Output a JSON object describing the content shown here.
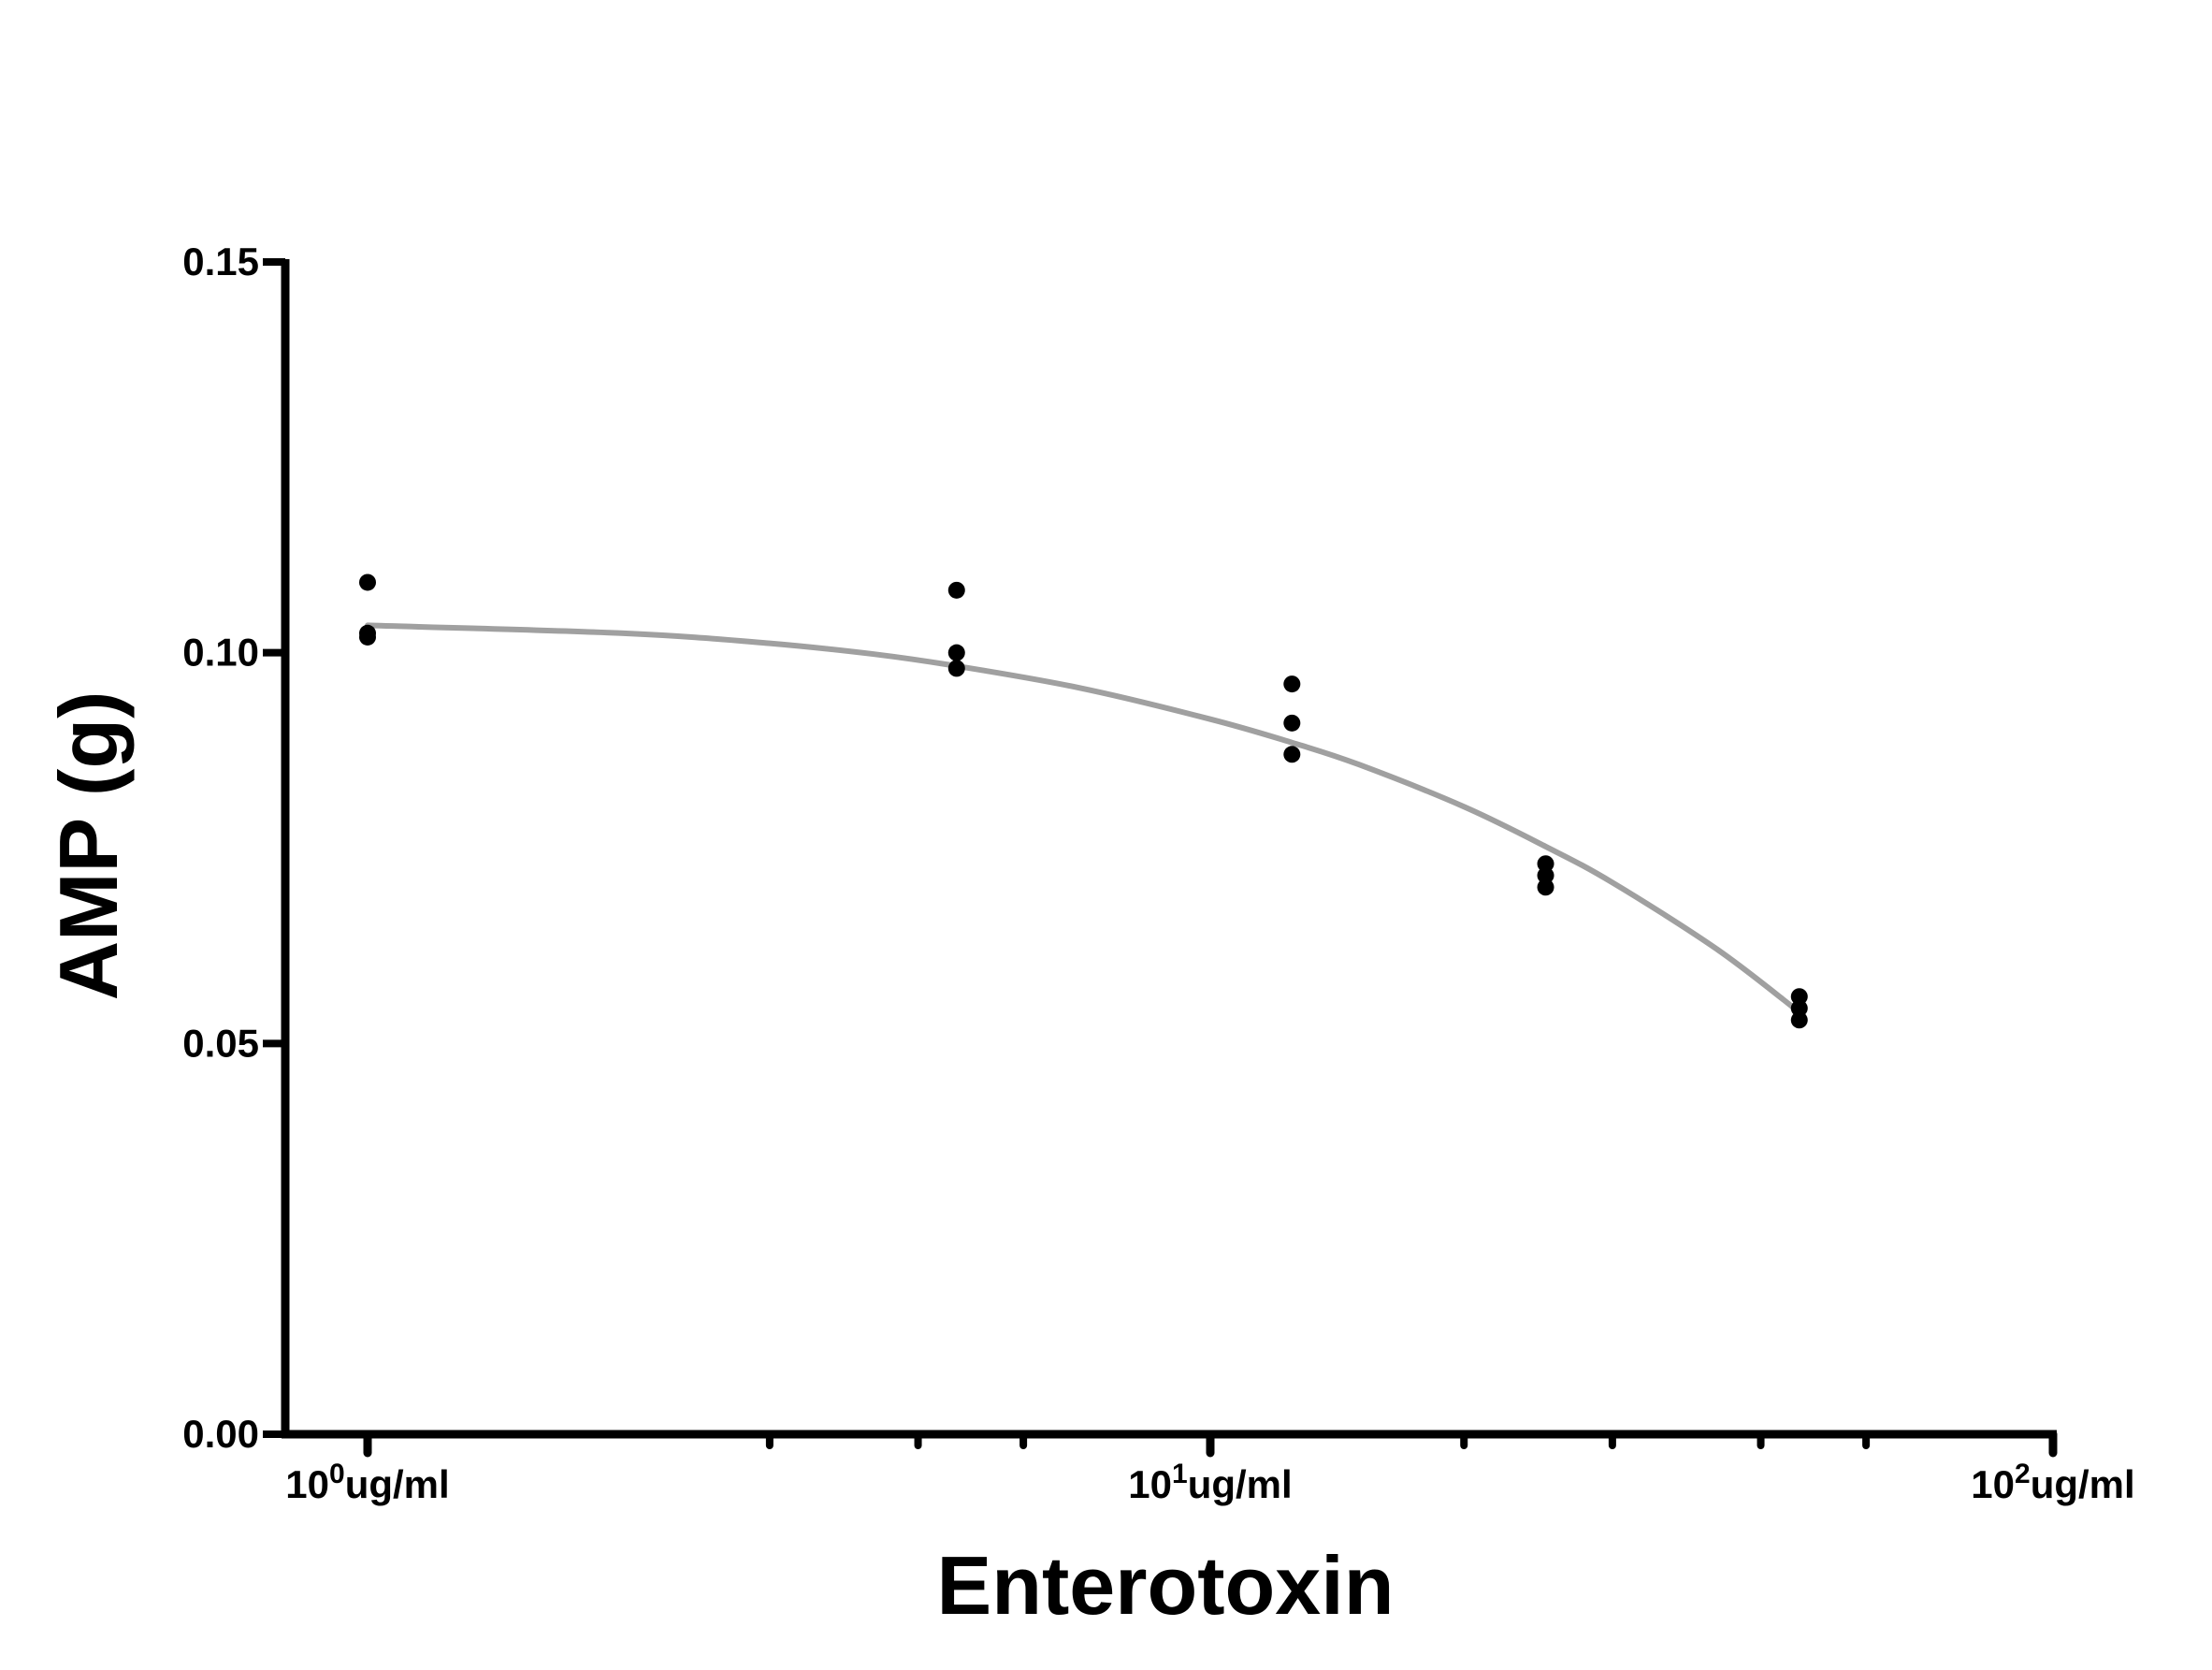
{
  "chart_data": {
    "type": "scatter",
    "xlabel": "Enterotoxin",
    "ylabel": "AMP (g)",
    "x_scale": "log",
    "xlim": [
      1,
      100
    ],
    "ylim": [
      0,
      0.15
    ],
    "x_ticks": [
      {
        "base": "10",
        "exp": "0",
        "unit": "ug/ml",
        "value": 1
      },
      {
        "base": "10",
        "exp": "1",
        "unit": "ug/ml",
        "value": 10
      },
      {
        "base": "10",
        "exp": "2",
        "unit": "ug/ml",
        "value": 100
      }
    ],
    "x_minor_ticks": [
      3,
      4.5,
      6,
      20,
      30,
      45,
      60
    ],
    "y_ticks": [
      {
        "label": "0.00",
        "value": 0
      },
      {
        "label": "0.05",
        "value": 0.05
      },
      {
        "label": "0.10",
        "value": 0.1
      },
      {
        "label": "0.15",
        "value": 0.15
      }
    ],
    "points": [
      {
        "x": 1.0,
        "y": 0.109
      },
      {
        "x": 1.0,
        "y": 0.1025
      },
      {
        "x": 1.0,
        "y": 0.102
      },
      {
        "x": 5.0,
        "y": 0.108
      },
      {
        "x": 5.0,
        "y": 0.1
      },
      {
        "x": 5.0,
        "y": 0.098
      },
      {
        "x": 12.5,
        "y": 0.096
      },
      {
        "x": 12.5,
        "y": 0.091
      },
      {
        "x": 12.5,
        "y": 0.087
      },
      {
        "x": 25.0,
        "y": 0.073
      },
      {
        "x": 25.0,
        "y": 0.0715
      },
      {
        "x": 25.0,
        "y": 0.07
      },
      {
        "x": 50.0,
        "y": 0.056
      },
      {
        "x": 50.0,
        "y": 0.0545
      },
      {
        "x": 50.0,
        "y": 0.053
      }
    ],
    "fit_curve": {
      "x": [
        1,
        2,
        3,
        4,
        5,
        7,
        10,
        12.5,
        15,
        20,
        25,
        30,
        40,
        50
      ],
      "y": [
        0.1035,
        0.1025,
        0.1012,
        0.0998,
        0.0983,
        0.0955,
        0.0915,
        0.0885,
        0.0857,
        0.0803,
        0.0752,
        0.0706,
        0.062,
        0.054
      ]
    },
    "colors": {
      "points": "#000000",
      "fit": "#a0a0a0",
      "axes": "#000000"
    },
    "grid": false
  }
}
